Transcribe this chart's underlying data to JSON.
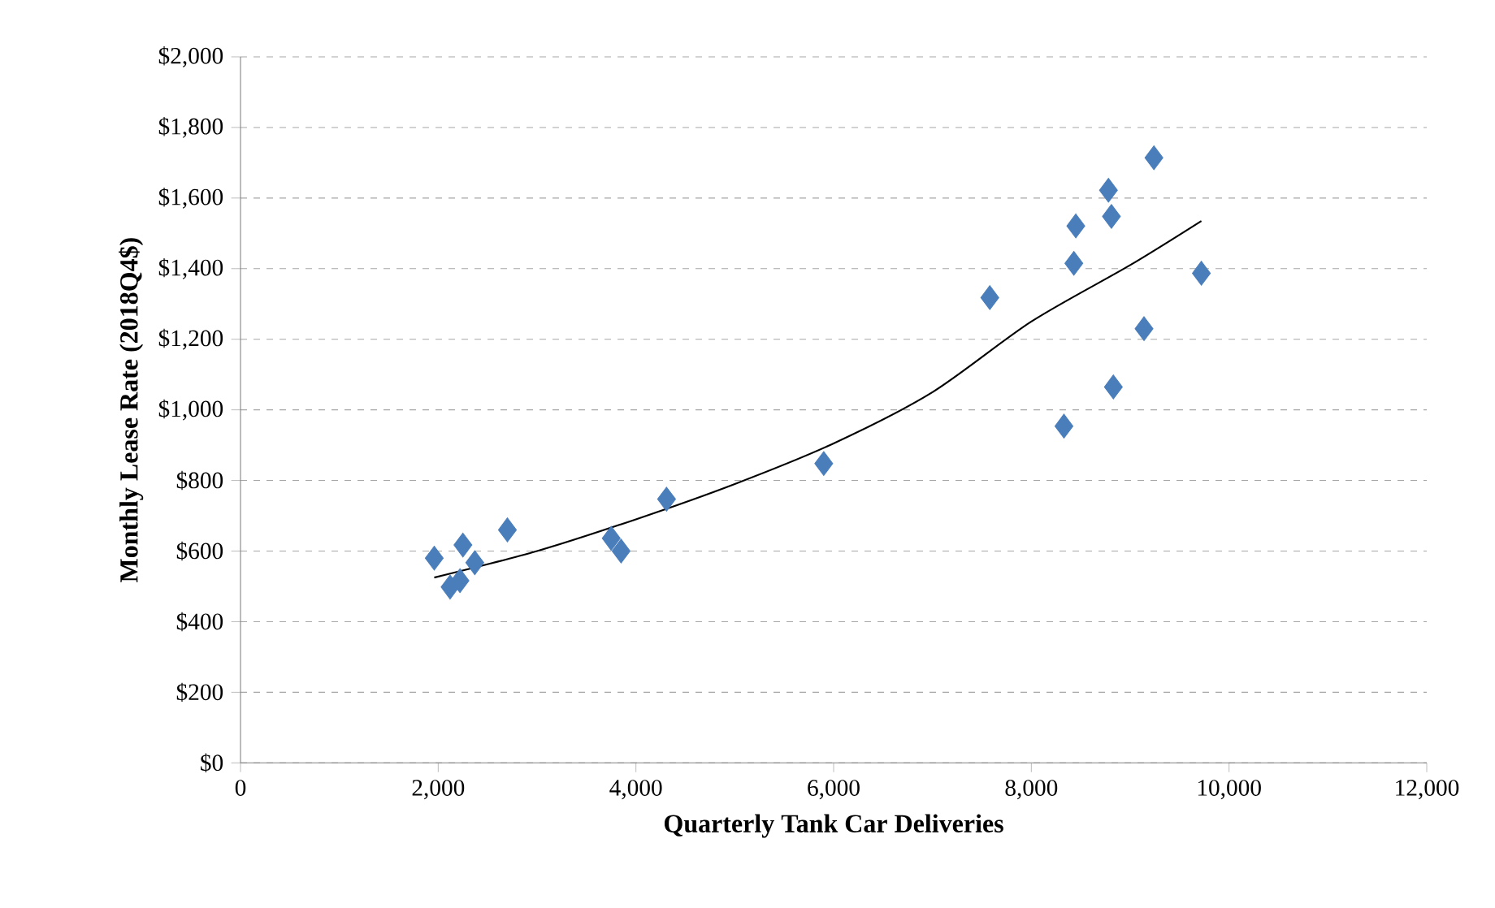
{
  "chart_data": {
    "type": "scatter",
    "xlabel": "Quarterly  Tank Car Deliveries",
    "ylabel": "Monthly  Lease Rate (2018Q4$)",
    "xlim": [
      0,
      12000
    ],
    "ylim": [
      0,
      2000
    ],
    "xticks": [
      {
        "value": 0,
        "label": "0"
      },
      {
        "value": 2000,
        "label": "2,000"
      },
      {
        "value": 4000,
        "label": "4,000"
      },
      {
        "value": 6000,
        "label": "6,000"
      },
      {
        "value": 8000,
        "label": "8,000"
      },
      {
        "value": 10000,
        "label": "10,000"
      },
      {
        "value": 12000,
        "label": "12,000"
      }
    ],
    "yticks": [
      {
        "value": 0,
        "label": "$0"
      },
      {
        "value": 200,
        "label": "$200"
      },
      {
        "value": 400,
        "label": "$400"
      },
      {
        "value": 600,
        "label": "$600"
      },
      {
        "value": 800,
        "label": "$800"
      },
      {
        "value": 1000,
        "label": "$1,000"
      },
      {
        "value": 1200,
        "label": "$1,200"
      },
      {
        "value": 1400,
        "label": "$1,400"
      },
      {
        "value": 1600,
        "label": "$1,600"
      },
      {
        "value": 1800,
        "label": "$1,800"
      },
      {
        "value": 2000,
        "label": "$2,000"
      }
    ],
    "grid": "y",
    "marker": "diamond",
    "series": [
      {
        "color": "#4a7ebb",
        "x": [
          1960,
          2120,
          2220,
          2250,
          2370,
          2700,
          3750,
          3850,
          4310,
          5900,
          7580,
          8330,
          8430,
          8450,
          8780,
          8810,
          8830,
          9140,
          9240,
          9720
        ],
        "values": [
          580,
          498,
          516,
          617,
          567,
          660,
          636,
          600,
          747,
          848,
          1318,
          954,
          1415,
          1521,
          1622,
          1548,
          1065,
          1230,
          1714,
          1387
        ]
      },
      {
        "type": "line",
        "color": "#000000",
        "marker": "none",
        "x": [
          1960,
          3000,
          4000,
          5000,
          6000,
          7000,
          8000,
          9000,
          9720
        ],
        "values": [
          525,
          600,
          690,
          790,
          905,
          1050,
          1250,
          1410,
          1535
        ]
      }
    ]
  }
}
